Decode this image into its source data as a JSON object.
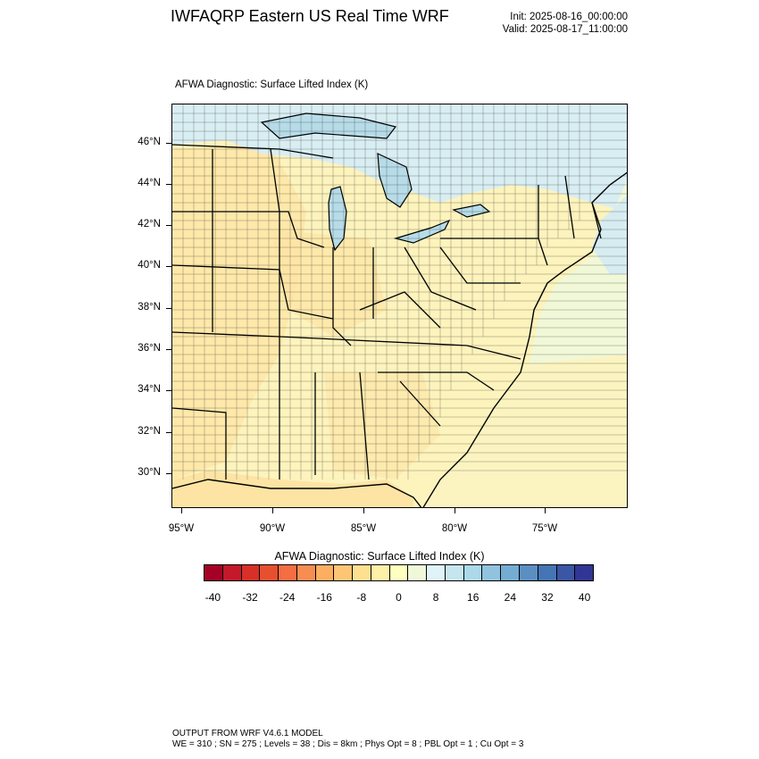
{
  "header": {
    "title": "IWFAQRP Eastern US Real Time WRF",
    "init": "Init: 2025-08-16_00:00:00",
    "valid": "Valid: 2025-08-17_11:00:00"
  },
  "field_title": "AFWA Diagnostic: Surface Lifted Index   (K)",
  "map": {
    "lat_labels": [
      "46°N",
      "44°N",
      "42°N",
      "40°N",
      "38°N",
      "36°N",
      "34°N",
      "32°N",
      "30°N"
    ],
    "lon_labels": [
      "95°W",
      "90°W",
      "85°W",
      "80°W",
      "75°W"
    ],
    "colors": {
      "land_warm": "#fdf3bd",
      "land_warmer": "#fde4a4",
      "north_cool": "#d9eef3",
      "lake_cool": "#b7dce8",
      "ocean_near": "#f0f8d8",
      "ocean_cool": "#d6ecf0",
      "gulf_warm": "#fde0a0"
    }
  },
  "colorbar": {
    "title": "AFWA Diagnostic: Surface Lifted Index  (K)",
    "labels": [
      "-40",
      "-32",
      "-24",
      "-16",
      "-8",
      "0",
      "8",
      "16",
      "24",
      "32",
      "40"
    ],
    "colors": [
      "#a50026",
      "#c4192a",
      "#d73027",
      "#e6502f",
      "#f46d43",
      "#f88d51",
      "#fdae61",
      "#fec575",
      "#fee090",
      "#fff0a8",
      "#ffffbf",
      "#eff9d9",
      "#e0f3f8",
      "#c5e5ef",
      "#abd9e9",
      "#91c3de",
      "#74add1",
      "#5b8fc2",
      "#4575b4",
      "#3a56a5",
      "#313695"
    ]
  },
  "footer": {
    "line1": "OUTPUT FROM WRF V4.6.1 MODEL",
    "line2": "WE = 310 ; SN = 275 ; Levels = 38 ; Dis = 8km ; Phys Opt = 8 ; PBL Opt = 1 ; Cu Opt = 3"
  }
}
